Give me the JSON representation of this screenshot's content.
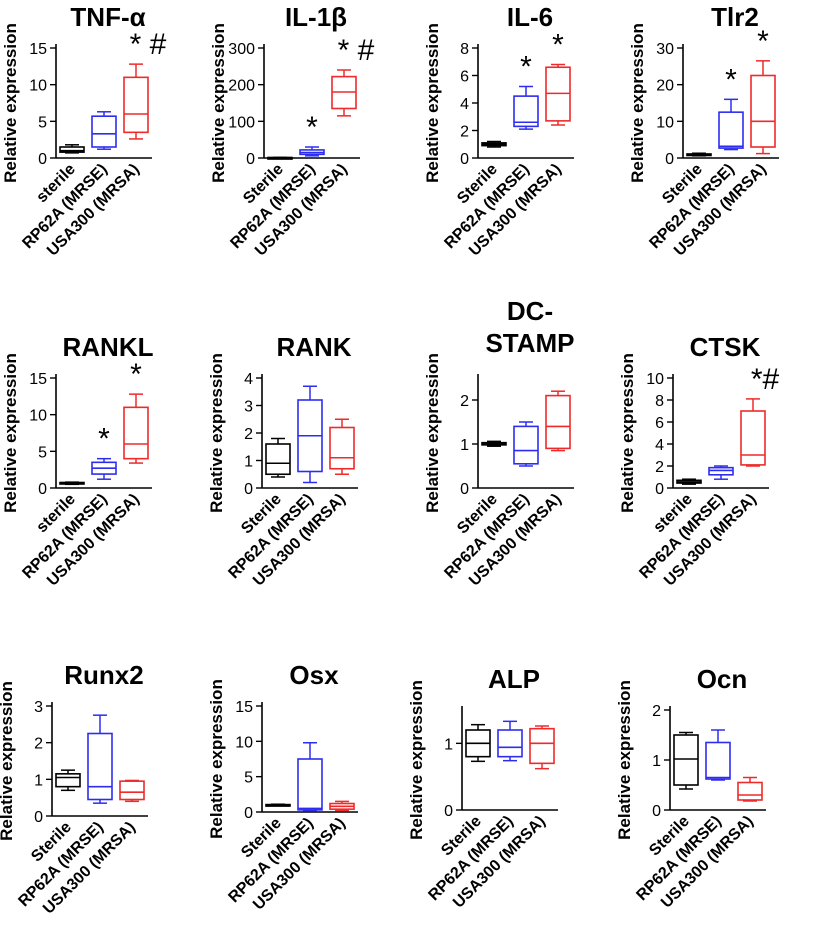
{
  "colors": {
    "sterile": "#000000",
    "mrse": "#2d2df0",
    "mrsa": "#ee2a2a",
    "axis": "#000000"
  },
  "chart_data": [
    {
      "type": "box",
      "title": "TNF-α",
      "ylabel": "Relative expression",
      "ylim": [
        0,
        15
      ],
      "yticks": [
        "0",
        "5",
        "10",
        "15"
      ],
      "categories": [
        "sterile",
        "RP62A (MRSE)",
        "USA300 (MRSA)"
      ],
      "boxes": [
        {
          "min": 0.7,
          "q1": 0.8,
          "median": 1.0,
          "q3": 1.5,
          "max": 1.8
        },
        {
          "min": 1.2,
          "q1": 1.5,
          "median": 3.3,
          "q3": 5.7,
          "max": 6.3
        },
        {
          "min": 2.6,
          "q1": 3.5,
          "median": 6.0,
          "q3": 11.0,
          "max": 12.8
        }
      ],
      "annotations": [
        {
          "index": 2,
          "text": "* #"
        }
      ]
    },
    {
      "type": "box",
      "title": "IL-1β",
      "ylabel": "Relative expression",
      "ylim": [
        0,
        300
      ],
      "yticks": [
        "0",
        "100",
        "200",
        "300"
      ],
      "categories": [
        "Sterile",
        "RP62A (MRSE)",
        "USA300 (MRSA)"
      ],
      "boxes": [
        {
          "min": 0.5,
          "q1": 0.8,
          "median": 1.0,
          "q3": 1.3,
          "max": 1.6
        },
        {
          "min": 6,
          "q1": 10,
          "median": 15,
          "q3": 22,
          "max": 30
        },
        {
          "min": 115,
          "q1": 135,
          "median": 180,
          "q3": 222,
          "max": 240
        }
      ],
      "annotations": [
        {
          "index": 1,
          "text": "*"
        },
        {
          "index": 2,
          "text": "* #"
        }
      ]
    },
    {
      "type": "box",
      "title": "IL-6",
      "ylabel": "Relative expression",
      "ylim": [
        0,
        8
      ],
      "yticks": [
        "0",
        "2",
        "4",
        "6",
        "8"
      ],
      "categories": [
        "Sterile",
        "RP62A (MRSE)",
        "USA300 (MRSA)"
      ],
      "boxes": [
        {
          "min": 0.8,
          "q1": 0.9,
          "median": 1.0,
          "q3": 1.1,
          "max": 1.2
        },
        {
          "min": 2.1,
          "q1": 2.3,
          "median": 2.6,
          "q3": 4.5,
          "max": 5.2
        },
        {
          "min": 2.4,
          "q1": 2.7,
          "median": 4.7,
          "q3": 6.6,
          "max": 6.8
        }
      ],
      "annotations": [
        {
          "index": 1,
          "text": "*"
        },
        {
          "index": 2,
          "text": "*"
        }
      ]
    },
    {
      "type": "box",
      "title": "Tlr2",
      "ylabel": "Relative expression",
      "ylim": [
        0,
        30
      ],
      "yticks": [
        "0",
        "10",
        "20",
        "30"
      ],
      "categories": [
        "Sterile",
        "RP62A (MRSE)",
        "USA300 (MRSA)"
      ],
      "boxes": [
        {
          "min": 0.6,
          "q1": 0.8,
          "median": 1.0,
          "q3": 1.1,
          "max": 1.3
        },
        {
          "min": 2.3,
          "q1": 2.7,
          "median": 3.2,
          "q3": 12.5,
          "max": 16.0
        },
        {
          "min": 1.2,
          "q1": 3.0,
          "median": 10.0,
          "q3": 22.5,
          "max": 26.5
        }
      ],
      "annotations": [
        {
          "index": 1,
          "text": "*"
        },
        {
          "index": 2,
          "text": "*"
        }
      ]
    },
    {
      "type": "box",
      "title": "RANKL",
      "ylabel": "Relative expression",
      "ylim": [
        0,
        15
      ],
      "yticks": [
        "0",
        "5",
        "10",
        "15"
      ],
      "categories": [
        "sterile",
        "RP62A (MRSE)",
        "USA300 (MRSA)"
      ],
      "boxes": [
        {
          "min": 0.5,
          "q1": 0.6,
          "median": 0.7,
          "q3": 0.75,
          "max": 0.8
        },
        {
          "min": 1.2,
          "q1": 1.9,
          "median": 2.7,
          "q3": 3.5,
          "max": 4.0
        },
        {
          "min": 3.4,
          "q1": 4.0,
          "median": 6.0,
          "q3": 11.0,
          "max": 12.8
        }
      ],
      "annotations": [
        {
          "index": 1,
          "text": "*"
        },
        {
          "index": 2,
          "text": "*"
        }
      ]
    },
    {
      "type": "box",
      "title": "RANK",
      "ylabel": "Relative expression",
      "ylim": [
        0,
        4
      ],
      "yticks": [
        "0",
        "1",
        "2",
        "3",
        "4"
      ],
      "categories": [
        "Sterile",
        "RP62A (MRSE)",
        "USA300 (MRSA)"
      ],
      "boxes": [
        {
          "min": 0.4,
          "q1": 0.5,
          "median": 0.9,
          "q3": 1.6,
          "max": 1.8
        },
        {
          "min": 0.2,
          "q1": 0.6,
          "median": 1.9,
          "q3": 3.2,
          "max": 3.7
        },
        {
          "min": 0.5,
          "q1": 0.7,
          "median": 1.1,
          "q3": 2.2,
          "max": 2.5
        }
      ],
      "annotations": []
    },
    {
      "type": "box",
      "title": "DC-STAMP",
      "title_lines": [
        "DC-",
        "STAMP"
      ],
      "ylabel": "Relative expression",
      "ylim": [
        0,
        2.5
      ],
      "yticks": [
        "0",
        "1",
        "2"
      ],
      "categories": [
        "Sterile",
        "RP62A (MRSE)",
        "USA300 (MRSA)"
      ],
      "boxes": [
        {
          "min": 0.95,
          "q1": 0.98,
          "median": 1.0,
          "q3": 1.03,
          "max": 1.06
        },
        {
          "min": 0.5,
          "q1": 0.55,
          "median": 0.85,
          "q3": 1.4,
          "max": 1.5
        },
        {
          "min": 0.85,
          "q1": 0.9,
          "median": 1.4,
          "q3": 2.1,
          "max": 2.2
        }
      ],
      "annotations": []
    },
    {
      "type": "box",
      "title": "CTSK",
      "ylabel": "Relative expression",
      "ylim": [
        0,
        10
      ],
      "yticks": [
        "0",
        "2",
        "4",
        "6",
        "8",
        "10"
      ],
      "categories": [
        "sterile",
        "RP62A (MRSE)",
        "USA300 (MRSA)"
      ],
      "boxes": [
        {
          "min": 0.35,
          "q1": 0.45,
          "median": 0.55,
          "q3": 0.7,
          "max": 0.8
        },
        {
          "min": 0.8,
          "q1": 1.2,
          "median": 1.6,
          "q3": 1.85,
          "max": 2.0
        },
        {
          "min": 2.0,
          "q1": 2.1,
          "median": 3.0,
          "q3": 7.0,
          "max": 8.1
        }
      ],
      "annotations": [
        {
          "index": 2,
          "text": "*#"
        }
      ]
    },
    {
      "type": "box",
      "title": "Runx2",
      "ylabel": "Relative expression",
      "ylim": [
        0,
        3
      ],
      "yticks": [
        "0",
        "1",
        "2",
        "3"
      ],
      "categories": [
        "Sterile",
        "RP62A (MRSE)",
        "USA300 (MRSA)"
      ],
      "boxes": [
        {
          "min": 0.7,
          "q1": 0.8,
          "median": 1.05,
          "q3": 1.15,
          "max": 1.25
        },
        {
          "min": 0.35,
          "q1": 0.45,
          "median": 0.8,
          "q3": 2.25,
          "max": 2.75
        },
        {
          "min": 0.4,
          "q1": 0.45,
          "median": 0.65,
          "q3": 0.95,
          "max": 0.97
        }
      ],
      "annotations": []
    },
    {
      "type": "box",
      "title": "Osx",
      "ylabel": "Relative expression",
      "ylim": [
        0,
        15
      ],
      "yticks": [
        "0",
        "5",
        "10",
        "15"
      ],
      "categories": [
        "Sterile",
        "RP62A (MRSE)",
        "USA300 (MRSA)"
      ],
      "boxes": [
        {
          "min": 0.9,
          "q1": 0.95,
          "median": 1.0,
          "q3": 1.05,
          "max": 1.1
        },
        {
          "min": 0.2,
          "q1": 0.3,
          "median": 0.5,
          "q3": 7.5,
          "max": 9.8
        },
        {
          "min": 0.2,
          "q1": 0.4,
          "median": 0.8,
          "q3": 1.2,
          "max": 1.5
        }
      ],
      "annotations": []
    },
    {
      "type": "box",
      "title": "ALP",
      "ylabel": "Relative expression",
      "ylim": [
        0,
        1.5
      ],
      "yticks": [
        "0",
        "1"
      ],
      "categories": [
        "Sterile",
        "RP62A (MRSE)",
        "USA300 (MRSA)"
      ],
      "boxes": [
        {
          "min": 0.73,
          "q1": 0.8,
          "median": 1.0,
          "q3": 1.2,
          "max": 1.28
        },
        {
          "min": 0.74,
          "q1": 0.8,
          "median": 0.94,
          "q3": 1.2,
          "max": 1.33
        },
        {
          "min": 0.62,
          "q1": 0.7,
          "median": 1.0,
          "q3": 1.22,
          "max": 1.26
        }
      ],
      "annotations": []
    },
    {
      "type": "box",
      "title": "Ocn",
      "ylabel": "Relative expression",
      "ylim": [
        0,
        2
      ],
      "yticks": [
        "0",
        "1",
        "2"
      ],
      "categories": [
        "Sterile",
        "RP62A (MRSE)",
        "USA300 (MRSA)"
      ],
      "boxes": [
        {
          "min": 0.42,
          "q1": 0.5,
          "median": 1.02,
          "q3": 1.5,
          "max": 1.55
        },
        {
          "min": 0.6,
          "q1": 0.62,
          "median": 0.65,
          "q3": 1.35,
          "max": 1.6
        },
        {
          "min": 0.18,
          "q1": 0.2,
          "median": 0.3,
          "q3": 0.55,
          "max": 0.65
        }
      ],
      "annotations": []
    }
  ]
}
